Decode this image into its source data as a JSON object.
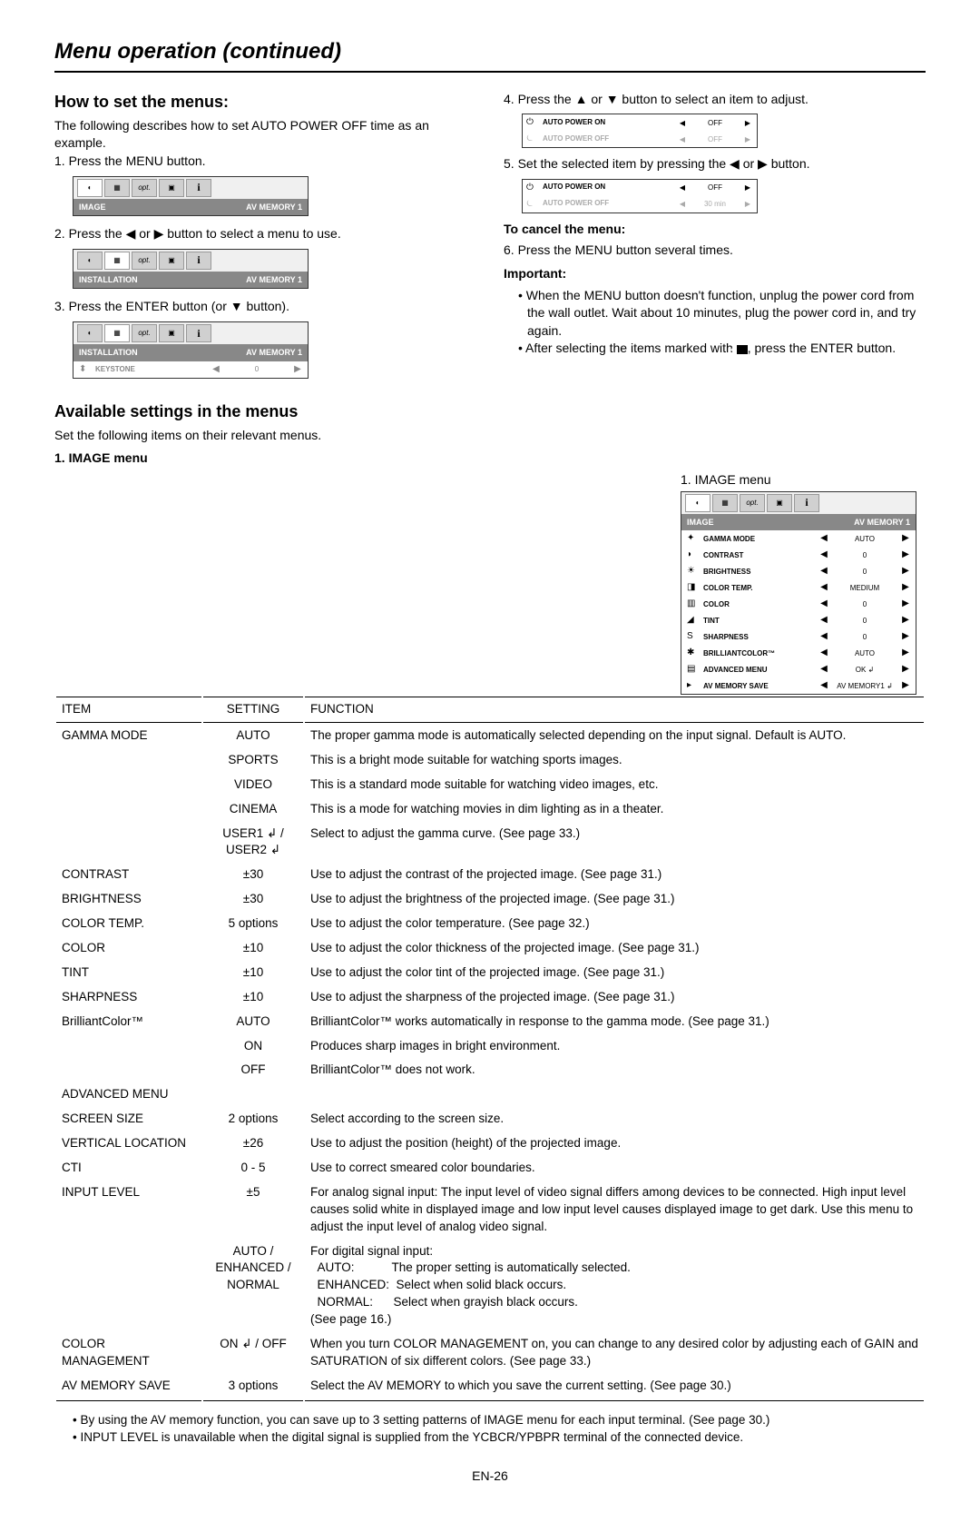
{
  "title": "Menu operation (continued)",
  "left": {
    "heading": "How to set the menus:",
    "intro": "The following describes how to set AUTO POWER OFF time as an example.",
    "step1": "Press the MENU button.",
    "box1": {
      "header_left": "IMAGE",
      "header_right": "AV MEMORY 1"
    },
    "step2": "Press the ◀ or ▶ button to select a menu to use.",
    "box2": {
      "header_left": "INSTALLATION",
      "header_right": "AV MEMORY 1"
    },
    "step3": "Press the ENTER button (or ▼ button).",
    "box3": {
      "header_left": "INSTALLATION",
      "header_right": "AV MEMORY 1",
      "row_label": "KEYSTONE",
      "row_val": "0"
    }
  },
  "right": {
    "step4": "Press the ▲ or ▼ button to select an item to adjust.",
    "mini1": {
      "r1_label": "AUTO POWER ON",
      "r1_val": "OFF",
      "r2_label": "AUTO POWER OFF",
      "r2_val": "OFF"
    },
    "step5": "Set the selected item by pressing the ◀ or ▶ button.",
    "mini2": {
      "r1_label": "AUTO POWER ON",
      "r1_val": "OFF",
      "r2_label": "AUTO POWER OFF",
      "r2_val": "30 min"
    },
    "cancel_heading": "To cancel the menu:",
    "step6": "Press the MENU button several times.",
    "important_heading": "Important:",
    "imp1": "When the MENU button doesn't function, unplug the power cord from the wall outlet. Wait about 10 minutes, plug the power cord in, and try again.",
    "imp2_a": "After selecting the items marked with ",
    "imp2_b": ", press the ENTER button."
  },
  "avail_heading": "Available settings in the menus",
  "avail_sub": "Set the following items on their relevant menus.",
  "imenu_heading": "1. IMAGE menu",
  "imenu_label": "1. IMAGE menu",
  "imenu_box": {
    "header_left": "IMAGE",
    "header_right": "AV MEMORY 1",
    "rows": [
      {
        "label": "GAMMA MODE",
        "val": "AUTO"
      },
      {
        "label": "CONTRAST",
        "val": "0"
      },
      {
        "label": "BRIGHTNESS",
        "val": "0"
      },
      {
        "label": "COLOR TEMP.",
        "val": "MEDIUM"
      },
      {
        "label": "COLOR",
        "val": "0"
      },
      {
        "label": "TINT",
        "val": "0"
      },
      {
        "label": "SHARPNESS",
        "val": "0"
      },
      {
        "label": "BrilliantColor™",
        "val": "AUTO"
      },
      {
        "label": "ADVANCED MENU",
        "val": "OK ↲"
      },
      {
        "label": "AV MEMORY SAVE",
        "val": "AV MEMORY1 ↲"
      }
    ]
  },
  "table": {
    "col_item": "ITEM",
    "col_setting": "SETTING",
    "col_func": "FUNCTION",
    "rows": [
      {
        "item": "GAMMA MODE",
        "setting": "AUTO",
        "func": "The proper gamma mode is automatically selected depending on the input signal. Default is AUTO."
      },
      {
        "item": "",
        "setting": "SPORTS",
        "func": "This is a bright mode suitable for watching sports images."
      },
      {
        "item": "",
        "setting": "VIDEO",
        "func": "This is a standard mode suitable for watching video images, etc."
      },
      {
        "item": "",
        "setting": "CINEMA",
        "func": "This is a mode for watching movies in dim lighting as in a theater."
      },
      {
        "item": "",
        "setting": "USER1 ↲ / USER2 ↲",
        "func": "Select to adjust the gamma curve. (See page 33.)"
      },
      {
        "item": "CONTRAST",
        "setting": "±30",
        "func": "Use to adjust the contrast of the projected image. (See page 31.)"
      },
      {
        "item": "BRIGHTNESS",
        "setting": "±30",
        "func": "Use to adjust the brightness of the projected image. (See page 31.)"
      },
      {
        "item": "COLOR TEMP.",
        "setting": "5 options",
        "func": "Use to adjust the color temperature. (See page 32.)"
      },
      {
        "item": "COLOR",
        "setting": "±10",
        "func": "Use to adjust the color thickness of the projected image. (See page 31.)"
      },
      {
        "item": "TINT",
        "setting": "±10",
        "func": "Use to adjust the color tint of the projected image. (See page 31.)"
      },
      {
        "item": "SHARPNESS",
        "setting": "±10",
        "func": "Use to adjust the sharpness of the projected image. (See page 31.)"
      },
      {
        "item": "BrilliantColor™",
        "setting": "AUTO",
        "func": "BrilliantColor™ works automatically in response to the gamma mode. (See page 31.)"
      },
      {
        "item": "",
        "setting": "ON",
        "func": "Produces sharp images in bright environment."
      },
      {
        "item": "",
        "setting": "OFF",
        "func": "BrilliantColor™ does not work."
      },
      {
        "item": "ADVANCED MENU",
        "setting": "",
        "func": ""
      },
      {
        "item": "SCREEN SIZE",
        "setting": "2 options",
        "func": "Select according to the screen size.",
        "indent": true
      },
      {
        "item": "VERTICAL LOCATION",
        "setting": "±26",
        "func": "Use to adjust the position (height) of the projected image.",
        "indent": true
      },
      {
        "item": "CTI",
        "setting": "0 - 5",
        "func": "Use to correct smeared color boundaries.",
        "indent": true
      },
      {
        "item": "INPUT LEVEL",
        "setting": "±5",
        "func": "For analog signal input: The input level of video signal differs among devices to be connected. High input level causes solid white in displayed image and low input level causes displayed image to get dark. Use this menu to adjust the input level of analog video signal.",
        "indent": true
      },
      {
        "item": "",
        "setting": "AUTO / ENHANCED / NORMAL",
        "func": "For digital signal input:\n  AUTO:           The proper setting is automatically selected.\n  ENHANCED:  Select when solid black occurs.\n  NORMAL:      Select when grayish black occurs.\n(See page 16.)",
        "indent": true
      },
      {
        "item": "COLOR MANAGEMENT",
        "setting": "ON ↲ / OFF",
        "func": "When you turn COLOR MANAGEMENT on, you can change to any desired color by adjusting each of GAIN and SATURATION of six different colors. (See page 33.)",
        "indent": true
      },
      {
        "item": "AV MEMORY SAVE",
        "setting": "3 options",
        "func": "Select the AV MEMORY to which you save the current setting. (See page 30.)",
        "last": true
      }
    ]
  },
  "foot1": "By using the AV memory function, you can save up to 3 setting patterns of IMAGE menu for each input terminal. (See page 30.)",
  "foot2": "INPUT LEVEL is unavailable when the digital signal is supplied from the YCBCR/YPBPR terminal of the connected device.",
  "pagenum": "EN-26"
}
